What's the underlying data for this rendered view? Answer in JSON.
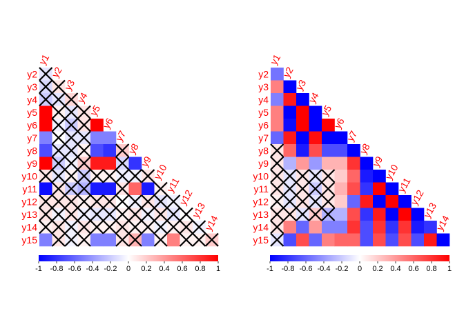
{
  "colors": {
    "negative": "#0000ff",
    "neutral": "#ffffff",
    "positive": "#ff0000",
    "label": "#ff0000",
    "cross": "#000000",
    "colorbar_text": "#000000"
  },
  "chart_data": [
    {
      "type": "heatmap",
      "shape": "lower-triangle",
      "variables": [
        "y1",
        "y2",
        "y3",
        "y4",
        "y5",
        "y6",
        "y7",
        "y8",
        "y9",
        "y10",
        "y11",
        "y12",
        "y13",
        "y14",
        "y15"
      ],
      "row_labels": [
        "y2",
        "y3",
        "y4",
        "y5",
        "y6",
        "y7",
        "y8",
        "y9",
        "y10",
        "y11",
        "y12",
        "y13",
        "y14",
        "y15"
      ],
      "column_labels": [
        "y1",
        "y2",
        "y3",
        "y4",
        "y5",
        "y6",
        "y7",
        "y8",
        "y9",
        "y10",
        "y11",
        "y12",
        "y13",
        "y14"
      ],
      "values": [
        [
          -0.1
        ],
        [
          -0.15,
          0.1
        ],
        [
          -0.2,
          -0.1,
          0.15
        ],
        [
          1.0,
          0.05,
          -0.1,
          0.1
        ],
        [
          1.0,
          -0.05,
          -0.2,
          0.1,
          1.0
        ],
        [
          -0.5,
          0.0,
          -0.1,
          -0.1,
          -0.5,
          -0.5
        ],
        [
          -0.7,
          -0.1,
          -0.1,
          0.05,
          -0.7,
          -0.8,
          0.2
        ],
        [
          1.0,
          -0.2,
          -0.05,
          0.2,
          0.9,
          0.9,
          -0.15,
          -0.8
        ],
        [
          0.1,
          -0.1,
          0.05,
          -0.2,
          0.05,
          0.05,
          -0.05,
          -0.05,
          0.1
        ],
        [
          -0.95,
          0.1,
          -0.2,
          -0.3,
          -0.9,
          -0.9,
          0.1,
          0.6,
          -0.9,
          0.05
        ],
        [
          0.1,
          0.1,
          0.1,
          0.05,
          0.1,
          0.1,
          0.0,
          -0.05,
          0.1,
          -0.1,
          -0.05
        ],
        [
          0.1,
          -0.05,
          0.1,
          -0.05,
          -0.1,
          -0.1,
          0.05,
          0.1,
          -0.05,
          0.1,
          -0.1,
          0.0
        ],
        [
          0.05,
          0.1,
          -0.05,
          0.1,
          0.05,
          0.05,
          0.1,
          0.05,
          0.05,
          -0.05,
          0.05,
          0.1,
          -0.05
        ],
        [
          -0.5,
          0.1,
          -0.05,
          0.05,
          -0.5,
          -0.5,
          0.1,
          0.3,
          -0.5,
          0.05,
          0.5,
          0.05,
          0.05,
          0.2
        ]
      ],
      "crossed": [
        [
          true
        ],
        [
          true,
          true
        ],
        [
          true,
          true,
          true
        ],
        [
          false,
          true,
          true,
          true
        ],
        [
          false,
          true,
          true,
          true,
          false
        ],
        [
          false,
          true,
          true,
          true,
          false,
          false
        ],
        [
          false,
          true,
          true,
          true,
          false,
          false,
          true
        ],
        [
          false,
          true,
          true,
          true,
          false,
          false,
          true,
          false
        ],
        [
          true,
          true,
          true,
          true,
          true,
          true,
          true,
          true,
          true
        ],
        [
          false,
          true,
          true,
          true,
          false,
          false,
          true,
          false,
          false,
          true
        ],
        [
          true,
          true,
          true,
          true,
          true,
          true,
          true,
          true,
          true,
          true,
          true
        ],
        [
          true,
          true,
          true,
          true,
          true,
          true,
          true,
          true,
          true,
          true,
          true,
          true
        ],
        [
          true,
          true,
          true,
          true,
          true,
          true,
          true,
          true,
          true,
          true,
          true,
          true,
          true
        ],
        [
          false,
          true,
          true,
          true,
          false,
          false,
          true,
          true,
          false,
          true,
          false,
          true,
          true,
          true
        ]
      ],
      "colorbar": {
        "range": [
          -1,
          1
        ],
        "ticks": [
          -1,
          -0.8,
          -0.6,
          -0.4,
          -0.2,
          0,
          0.2,
          0.4,
          0.6,
          0.8,
          1
        ],
        "tick_labels": [
          "-1",
          "-0.8",
          "-0.6",
          "-0.4",
          "-0.2",
          "0",
          "0.2",
          "0.4",
          "0.6",
          "0.8",
          "1"
        ]
      }
    },
    {
      "type": "heatmap",
      "shape": "lower-triangle",
      "variables": [
        "y1",
        "y2",
        "y3",
        "y4",
        "y5",
        "y6",
        "y7",
        "y8",
        "y9",
        "y10",
        "y11",
        "y12",
        "y13",
        "y14",
        "y15"
      ],
      "row_labels": [
        "y2",
        "y3",
        "y4",
        "y5",
        "y6",
        "y7",
        "y8",
        "y9",
        "y10",
        "y11",
        "y12",
        "y13",
        "y14",
        "y15"
      ],
      "column_labels": [
        "y1",
        "y2",
        "y3",
        "y4",
        "y5",
        "y6",
        "y7",
        "y8",
        "y9",
        "y10",
        "y11",
        "y12",
        "y13",
        "y14"
      ],
      "values": [
        [
          -0.55
        ],
        [
          0.5,
          -1.0
        ],
        [
          -0.5,
          0.9,
          -1.0
        ],
        [
          0.5,
          -1.0,
          1.0,
          -1.0
        ],
        [
          0.5,
          -0.95,
          1.0,
          -1.0,
          1.0
        ],
        [
          -0.6,
          0.9,
          -1.0,
          0.95,
          -1.0,
          -1.0
        ],
        [
          0.1,
          0.6,
          -0.9,
          0.7,
          -0.7,
          -0.7,
          -1.0
        ],
        [
          0.1,
          -0.3,
          0.4,
          -0.4,
          0.3,
          0.3,
          0.8,
          -1.0
        ],
        [
          0.1,
          -0.1,
          0.1,
          -0.1,
          0.1,
          0.2,
          0.6,
          -0.9,
          -1.0
        ],
        [
          0.1,
          -0.1,
          0.1,
          -0.2,
          0.1,
          0.3,
          0.7,
          -0.8,
          1.0,
          -1.0
        ],
        [
          0.05,
          -0.1,
          0.1,
          -0.1,
          0.1,
          0.2,
          -0.6,
          0.9,
          -1.0,
          1.0,
          -1.0
        ],
        [
          0.1,
          0.1,
          -0.1,
          0.2,
          -0.3,
          -0.3,
          0.7,
          -0.8,
          0.9,
          -1.0,
          1.0,
          -1.0
        ],
        [
          0.1,
          0.5,
          -0.6,
          0.4,
          -0.5,
          -0.5,
          0.8,
          -0.7,
          0.8,
          -0.8,
          0.8,
          -0.9,
          -0.8
        ],
        [
          -0.1,
          -0.7,
          0.7,
          -0.6,
          0.5,
          0.6,
          0.6,
          -0.7,
          0.7,
          -0.7,
          0.7,
          -0.7,
          0.9,
          -1.0
        ]
      ],
      "crossed": [
        [
          false
        ],
        [
          false,
          false
        ],
        [
          false,
          false,
          false
        ],
        [
          false,
          false,
          false,
          false
        ],
        [
          false,
          false,
          false,
          false,
          false
        ],
        [
          false,
          false,
          false,
          false,
          false,
          false
        ],
        [
          true,
          false,
          false,
          false,
          false,
          false,
          false
        ],
        [
          true,
          false,
          false,
          false,
          false,
          false,
          false,
          false
        ],
        [
          true,
          true,
          true,
          true,
          true,
          false,
          false,
          false,
          false
        ],
        [
          true,
          true,
          true,
          true,
          true,
          false,
          false,
          false,
          false,
          false
        ],
        [
          true,
          true,
          true,
          true,
          true,
          false,
          false,
          false,
          false,
          false,
          false
        ],
        [
          true,
          true,
          true,
          true,
          true,
          false,
          false,
          false,
          false,
          false,
          false,
          false
        ],
        [
          true,
          false,
          false,
          false,
          false,
          false,
          false,
          false,
          false,
          false,
          false,
          false,
          false
        ],
        [
          true,
          false,
          false,
          false,
          false,
          false,
          false,
          false,
          false,
          false,
          false,
          false,
          false,
          false
        ]
      ],
      "colorbar": {
        "range": [
          -1,
          1
        ],
        "ticks": [
          -1,
          -0.8,
          -0.6,
          -0.4,
          -0.2,
          0,
          0.2,
          0.4,
          0.6,
          0.8,
          1
        ],
        "tick_labels": [
          "-1",
          "-0.8",
          "-0.6",
          "-0.4",
          "-0.2",
          "0",
          "0.2",
          "0.4",
          "0.6",
          "0.8",
          "1"
        ]
      }
    }
  ]
}
